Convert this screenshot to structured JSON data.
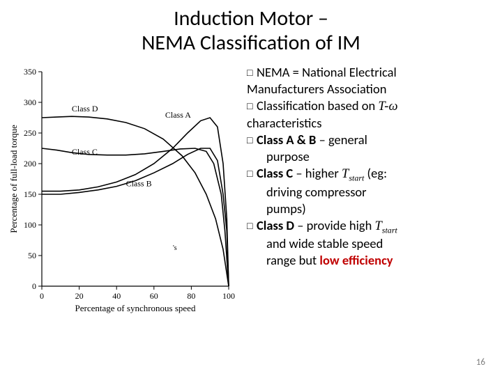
{
  "title_line1": "Induction Motor –",
  "title_line2": "NEMA Classification of IM",
  "page_number": "16",
  "chart": {
    "type": "line",
    "xlabel": "Percentage of synchronous speed",
    "ylabel": "Percentage of full-load torque",
    "xlim": [
      0,
      100
    ],
    "ylim": [
      0,
      350
    ],
    "xticks": [
      0,
      20,
      40,
      60,
      80,
      100
    ],
    "yticks": [
      0,
      50,
      100,
      150,
      200,
      250,
      300,
      350
    ],
    "background_color": "#ffffff",
    "axis_color": "#000000",
    "curve_color": "#000000",
    "curves": {
      "A": {
        "label": "Class A",
        "label_xy": [
          66,
          275
        ],
        "pts": [
          [
            0,
            155
          ],
          [
            10,
            155
          ],
          [
            20,
            157
          ],
          [
            30,
            162
          ],
          [
            40,
            170
          ],
          [
            50,
            182
          ],
          [
            60,
            200
          ],
          [
            70,
            225
          ],
          [
            78,
            250
          ],
          [
            85,
            270
          ],
          [
            90,
            275
          ],
          [
            94,
            260
          ],
          [
            97,
            200
          ],
          [
            99,
            110
          ],
          [
            100,
            0
          ]
        ]
      },
      "B": {
        "label": "Class B",
        "label_xy": [
          45,
          163
        ],
        "pts": [
          [
            0,
            150
          ],
          [
            10,
            150
          ],
          [
            20,
            153
          ],
          [
            30,
            157
          ],
          [
            40,
            163
          ],
          [
            50,
            172
          ],
          [
            60,
            185
          ],
          [
            70,
            200
          ],
          [
            78,
            215
          ],
          [
            85,
            225
          ],
          [
            90,
            225
          ],
          [
            94,
            205
          ],
          [
            97,
            150
          ],
          [
            99,
            90
          ],
          [
            100,
            0
          ]
        ]
      },
      "C": {
        "label": "Class C",
        "label_xy": [
          16,
          215
        ],
        "pts": [
          [
            0,
            225
          ],
          [
            8,
            222
          ],
          [
            16,
            218
          ],
          [
            25,
            215
          ],
          [
            35,
            214
          ],
          [
            45,
            214
          ],
          [
            55,
            216
          ],
          [
            65,
            220
          ],
          [
            74,
            224
          ],
          [
            82,
            225
          ],
          [
            88,
            220
          ],
          [
            92,
            200
          ],
          [
            96,
            150
          ],
          [
            98,
            90
          ],
          [
            100,
            0
          ]
        ]
      },
      "D": {
        "label": "Class D",
        "label_xy": [
          16,
          285
        ],
        "pts": [
          [
            0,
            275
          ],
          [
            8,
            276
          ],
          [
            16,
            277
          ],
          [
            25,
            276
          ],
          [
            35,
            273
          ],
          [
            45,
            267
          ],
          [
            55,
            257
          ],
          [
            65,
            240
          ],
          [
            75,
            213
          ],
          [
            82,
            185
          ],
          [
            88,
            150
          ],
          [
            93,
            110
          ],
          [
            97,
            60
          ],
          [
            100,
            0
          ]
        ]
      }
    },
    "ws_label": "'s"
  },
  "bullets": {
    "b1a": "NEMA = National Electrical",
    "b1b": "Manufacturers Association",
    "b2a": "Classification based on ",
    "b2b": "characteristics",
    "b3a": "Class A & B",
    "b3b": " – general",
    "b3c": "purpose",
    "b4a": "Class C",
    "b4b": " – higher ",
    "b4c": " (eg:",
    "b4d": "driving compressor",
    "b4e": "pumps)",
    "b5a": "Class D",
    "b5b": " – provide high ",
    "b5c": "and wide stable speed",
    "b5d": "range but ",
    "b5e": "low efficiency",
    "tvar": "T",
    "tstart": "start",
    "tomega": "T-ω"
  }
}
